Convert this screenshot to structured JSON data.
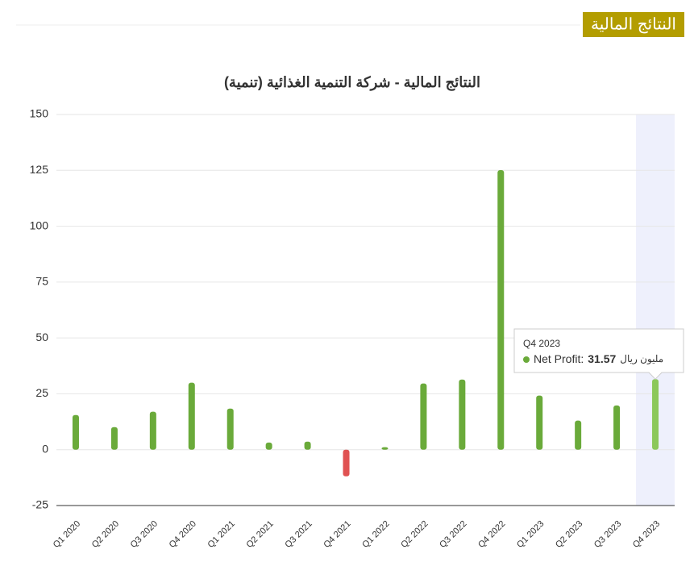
{
  "header": {
    "title": "النتائج المالية"
  },
  "chart_data": {
    "type": "bar",
    "title": "النتائج المالية - شركة التنمية الغذائية (تنمية)",
    "categories": [
      "Q1 2020",
      "Q2 2020",
      "Q3 2020",
      "Q4 2020",
      "Q1 2021",
      "Q2 2021",
      "Q3 2021",
      "Q4 2021",
      "Q1 2022",
      "Q2 2022",
      "Q3 2022",
      "Q4 2022",
      "Q1 2023",
      "Q2 2023",
      "Q3 2023",
      "Q4 2023"
    ],
    "series": [
      {
        "color": "#6aaa3a",
        "negative_color": "#e05252",
        "values": [
          15.5,
          10.1,
          17,
          30,
          18.4,
          3.2,
          3.6,
          -11.9,
          1.1,
          29.6,
          31.4,
          125.1,
          24.2,
          13,
          19.8,
          31.57
        ]
      }
    ],
    "ylim": [
      -25,
      150
    ],
    "yticks": [
      -25,
      0,
      25,
      50,
      75,
      100,
      125,
      150
    ],
    "grid": true,
    "tooltip": {
      "label": "Net Profit:",
      "unit": "مليون ريال"
    }
  }
}
